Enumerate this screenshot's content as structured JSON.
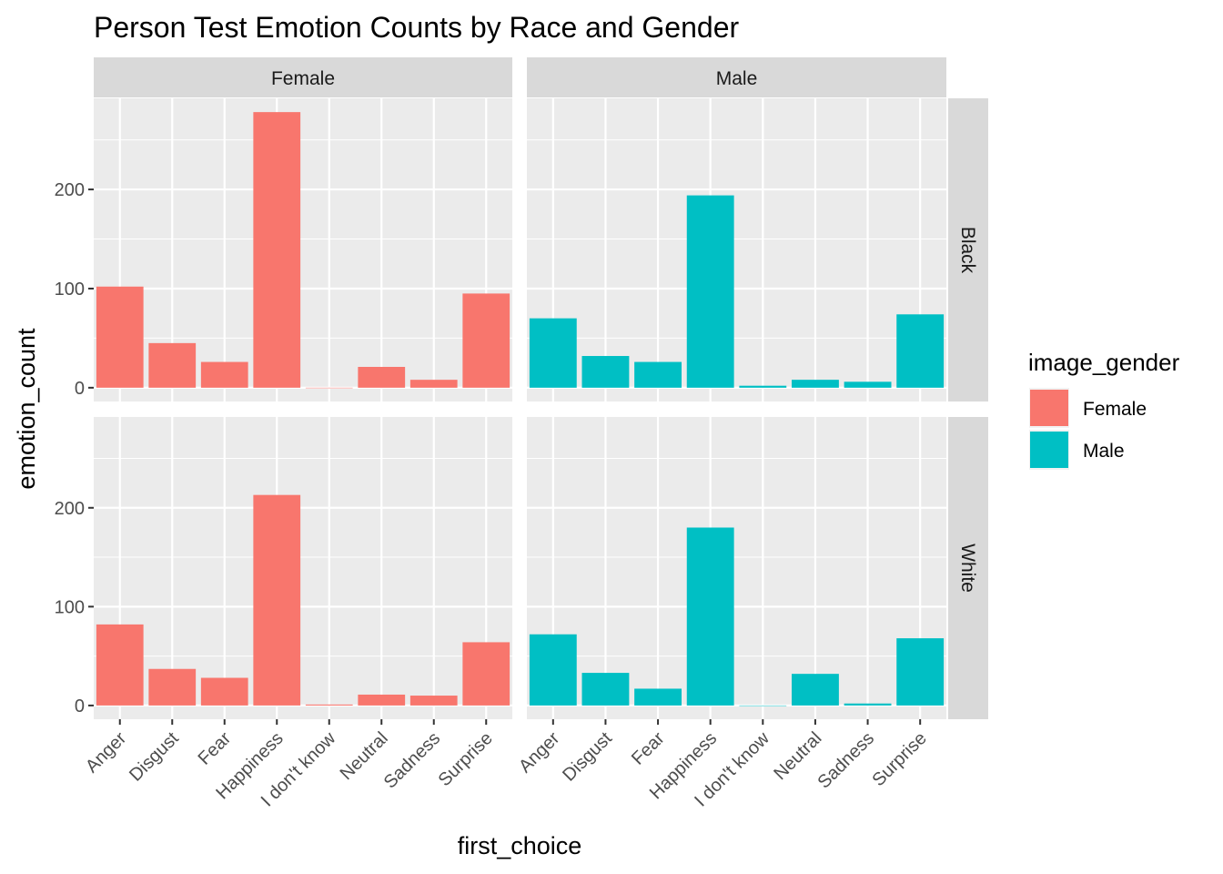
{
  "chart_data": {
    "type": "bar",
    "title": "Person Test Emotion Counts by Race and Gender",
    "xlabel": "first_choice",
    "ylabel": "emotion_count",
    "categories": [
      "Anger",
      "Disgust",
      "Fear",
      "Happiness",
      "I don't know",
      "Neutral",
      "Sadness",
      "Surprise"
    ],
    "col_facets": [
      "Female",
      "Male"
    ],
    "row_facets": [
      "Black",
      "White"
    ],
    "yticks": [
      0,
      100,
      200
    ],
    "ylim": [
      0,
      278
    ],
    "grid": true,
    "legend": {
      "title": "image_gender",
      "placement": "right",
      "entries": [
        {
          "name": "Female",
          "color": "#F8766D"
        },
        {
          "name": "Male",
          "color": "#00BFC4"
        }
      ]
    },
    "panels": [
      {
        "row": "Black",
        "col": "Female",
        "fill": "Female",
        "values": [
          102,
          45,
          26,
          278,
          0,
          21,
          8,
          95
        ]
      },
      {
        "row": "Black",
        "col": "Male",
        "fill": "Male",
        "values": [
          70,
          32,
          26,
          194,
          2,
          8,
          6,
          74
        ]
      },
      {
        "row": "White",
        "col": "Female",
        "fill": "Female",
        "values": [
          82,
          37,
          28,
          213,
          1,
          11,
          10,
          64
        ]
      },
      {
        "row": "White",
        "col": "Male",
        "fill": "Male",
        "values": [
          72,
          33,
          17,
          180,
          0,
          32,
          2,
          68
        ]
      }
    ]
  }
}
